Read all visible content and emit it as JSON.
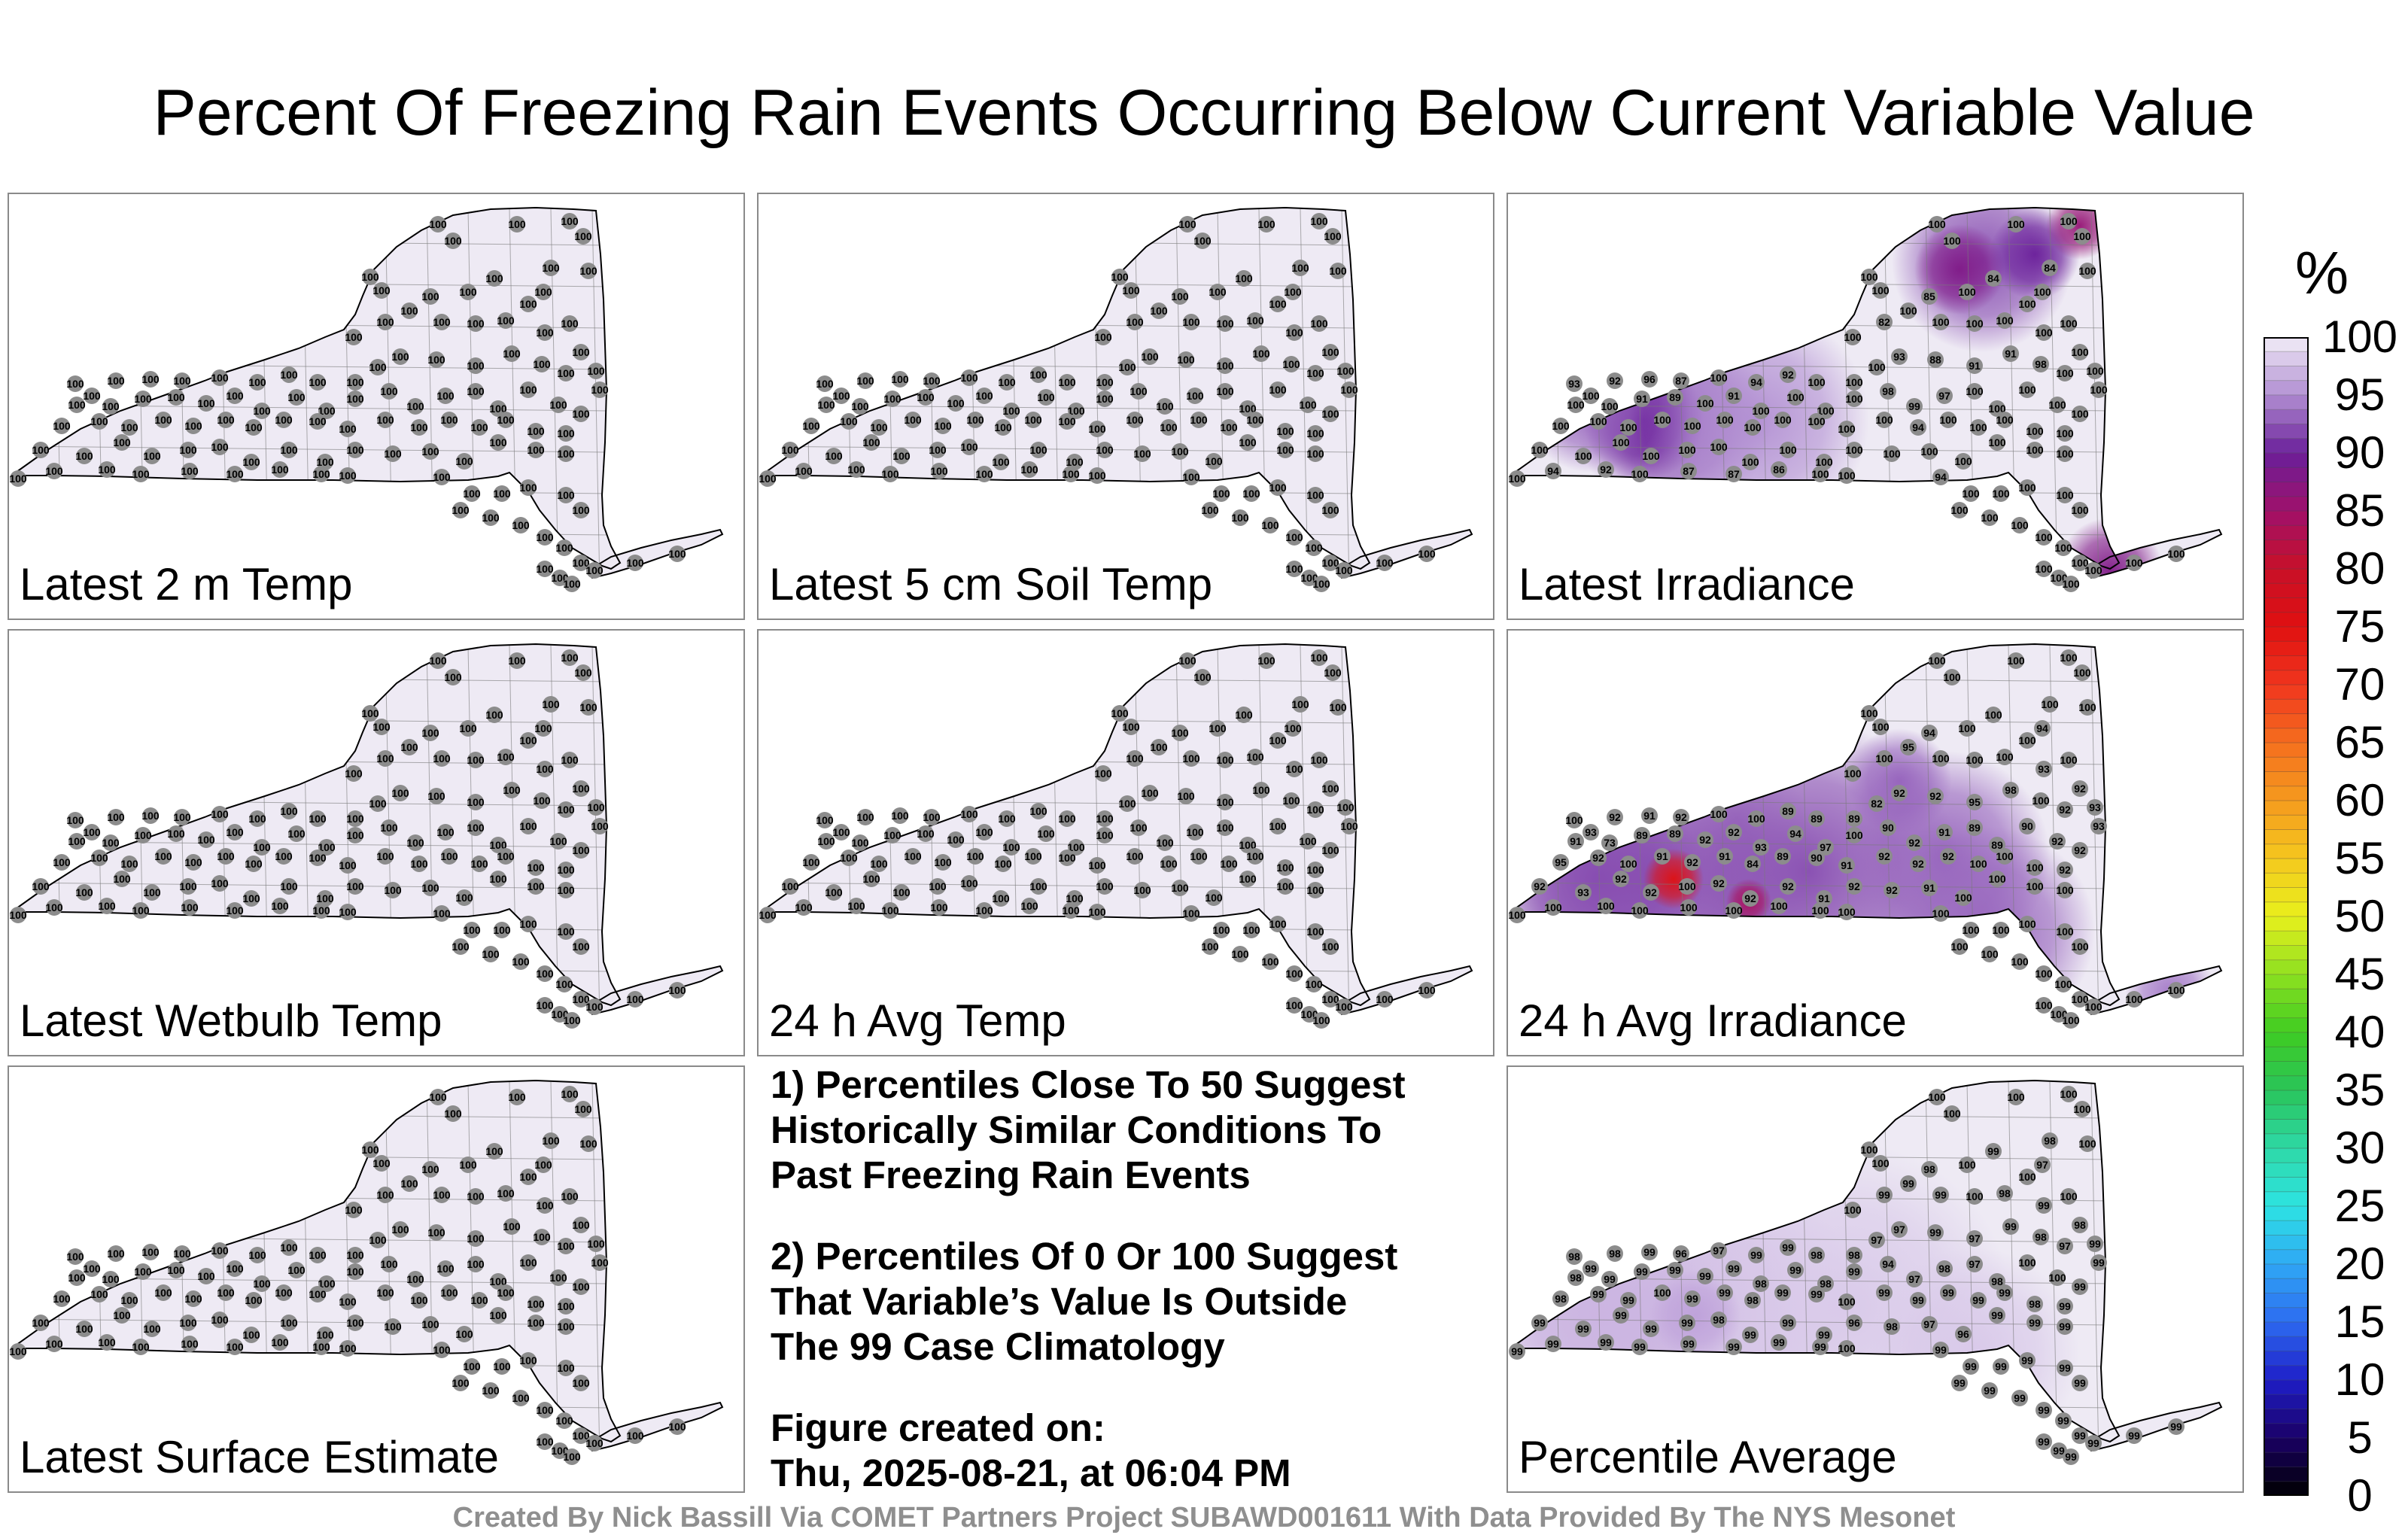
{
  "title": "Percent Of Freezing Rain Events Occurring Below Current Variable Value",
  "colors": {
    "low_value_lavender": "#eeeaf4",
    "mid_purple": "#c2aad8",
    "deep_purple": "#6a1f9a",
    "hotspot_red": "#d52020",
    "station_marker": "#8c8c8c",
    "state_outline": "#000000",
    "county_lines": "#7a7a7a"
  },
  "panels": [
    {
      "label": "Latest 2 m Temp",
      "fill": "uniform",
      "station_values": [
        "100",
        "100",
        "100",
        "100",
        "100",
        "100",
        "100",
        "100",
        "100",
        "100",
        "100",
        "100",
        "100",
        "100",
        "100",
        "100",
        "100",
        "100",
        "100",
        "100",
        "100",
        "100",
        "100",
        "100",
        "100",
        "100",
        "100",
        "100",
        "100",
        "100",
        "100",
        "100",
        "100",
        "100",
        "100",
        "100",
        "100",
        "100",
        "100",
        "100",
        "100",
        "100",
        "100",
        "100",
        "100",
        "100",
        "100",
        "100",
        "100",
        "100",
        "100",
        "100",
        "100",
        "100",
        "100",
        "100",
        "100",
        "100",
        "100",
        "100",
        "100",
        "100",
        "100",
        "100",
        "100",
        "100",
        "100",
        "100",
        "100",
        "100",
        "100",
        "100",
        "100",
        "100",
        "100",
        "100",
        "100",
        "100",
        "100",
        "100",
        "100",
        "100",
        "100",
        "100",
        "100",
        "100",
        "100",
        "100",
        "100",
        "100",
        "100",
        "100",
        "100",
        "100",
        "100",
        "100",
        "100",
        "100",
        "100",
        "100",
        "100",
        "100",
        "100",
        "100",
        "100",
        "100",
        "100",
        "100",
        "100",
        "100",
        "100",
        "100",
        "100",
        "100",
        "100",
        "100",
        "100",
        "100",
        "100",
        "100"
      ]
    },
    {
      "label": "Latest 5 cm Soil Temp",
      "fill": "uniform",
      "station_values": [
        "100",
        "100",
        "100",
        "100",
        "100",
        "100",
        "100",
        "100",
        "100",
        "100",
        "100",
        "100",
        "100",
        "100",
        "100",
        "100",
        "100",
        "100",
        "100",
        "100",
        "100",
        "100",
        "100",
        "100",
        "100",
        "100",
        "100",
        "100",
        "100",
        "100",
        "100",
        "100",
        "100",
        "100",
        "100",
        "100",
        "100",
        "100",
        "100",
        "100",
        "100",
        "100",
        "100",
        "100",
        "100",
        "100",
        "100",
        "100",
        "100",
        "100",
        "100",
        "100",
        "100",
        "100",
        "100",
        "100",
        "100",
        "100",
        "100",
        "100",
        "100",
        "100",
        "100",
        "100",
        "100",
        "100",
        "100",
        "100",
        "100",
        "100",
        "100",
        "100",
        "100",
        "100",
        "100",
        "100",
        "100",
        "100",
        "100",
        "100",
        "100",
        "100",
        "100",
        "100",
        "100",
        "100",
        "100",
        "100",
        "100",
        "100",
        "100",
        "100",
        "100",
        "100",
        "100",
        "100",
        "100",
        "100",
        "100",
        "100",
        "100",
        "100",
        "100",
        "100",
        "100",
        "100",
        "100",
        "100",
        "100",
        "100",
        "100",
        "100",
        "100",
        "100",
        "100",
        "100",
        "100",
        "100",
        "100",
        "100"
      ]
    },
    {
      "label": "Latest Irradiance",
      "fill": "irradiance",
      "station_values": [
        "100",
        "100",
        "100",
        "100",
        "84",
        "100",
        "100",
        "100",
        "85",
        "100",
        "84",
        "100",
        "100",
        "100",
        "100",
        "100",
        "82",
        "100",
        "100",
        "100",
        "100",
        "100",
        "100",
        "100",
        "100",
        "93",
        "100",
        "92",
        "96",
        "87",
        "100",
        "94",
        "92",
        "100",
        "100",
        "100",
        "93",
        "88",
        "91",
        "91",
        "98",
        "100",
        "100",
        "100",
        "91",
        "89",
        "100",
        "91",
        "100",
        "100",
        "100",
        "100",
        "98",
        "99",
        "97",
        "100",
        "100",
        "100",
        "100",
        "100",
        "100",
        "100",
        "100",
        "100",
        "100",
        "100",
        "100",
        "100",
        "100",
        "100",
        "100",
        "94",
        "100",
        "100",
        "100",
        "100",
        "100",
        "100",
        "100",
        "100",
        "100",
        "100",
        "100",
        "100",
        "100",
        "100",
        "100",
        "100",
        "100",
        "100",
        "100",
        "100",
        "100",
        "100",
        "94",
        "92",
        "100",
        "87",
        "87",
        "86",
        "100",
        "100",
        "94",
        "100",
        "100",
        "100",
        "100",
        "100",
        "100",
        "100",
        "100",
        "100",
        "100",
        "100",
        "100",
        "100",
        "100",
        "100",
        "100",
        "100"
      ]
    },
    {
      "label": "Latest Wetbulb Temp",
      "fill": "uniform",
      "station_values": [
        "100",
        "100",
        "100",
        "100",
        "100",
        "100",
        "100",
        "100",
        "100",
        "100",
        "100",
        "100",
        "100",
        "100",
        "100",
        "100",
        "100",
        "100",
        "100",
        "100",
        "100",
        "100",
        "100",
        "100",
        "100",
        "100",
        "100",
        "100",
        "100",
        "100",
        "100",
        "100",
        "100",
        "100",
        "100",
        "100",
        "100",
        "100",
        "100",
        "100",
        "100",
        "100",
        "100",
        "100",
        "100",
        "100",
        "100",
        "100",
        "100",
        "100",
        "100",
        "100",
        "100",
        "100",
        "100",
        "100",
        "100",
        "100",
        "100",
        "100",
        "100",
        "100",
        "100",
        "100",
        "100",
        "100",
        "100",
        "100",
        "100",
        "100",
        "100",
        "100",
        "100",
        "100",
        "100",
        "100",
        "100",
        "100",
        "100",
        "100",
        "100",
        "100",
        "100",
        "100",
        "100",
        "100",
        "100",
        "100",
        "100",
        "100",
        "100",
        "100",
        "100",
        "100",
        "100",
        "100",
        "100",
        "100",
        "100",
        "100",
        "100",
        "100",
        "100",
        "100",
        "100",
        "100",
        "100",
        "100",
        "100",
        "100",
        "100",
        "100",
        "100",
        "100",
        "100",
        "100",
        "100",
        "100",
        "100",
        "100"
      ]
    },
    {
      "label": "24 h Avg Temp",
      "fill": "uniform",
      "station_values": [
        "100",
        "100",
        "100",
        "100",
        "100",
        "100",
        "100",
        "100",
        "100",
        "100",
        "100",
        "100",
        "100",
        "100",
        "100",
        "100",
        "100",
        "100",
        "100",
        "100",
        "100",
        "100",
        "100",
        "100",
        "100",
        "100",
        "100",
        "100",
        "100",
        "100",
        "100",
        "100",
        "100",
        "100",
        "100",
        "100",
        "100",
        "100",
        "100",
        "100",
        "100",
        "100",
        "100",
        "100",
        "100",
        "100",
        "100",
        "100",
        "100",
        "100",
        "100",
        "100",
        "100",
        "100",
        "100",
        "100",
        "100",
        "100",
        "100",
        "100",
        "100",
        "100",
        "100",
        "100",
        "100",
        "100",
        "100",
        "100",
        "100",
        "100",
        "100",
        "100",
        "100",
        "100",
        "100",
        "100",
        "100",
        "100",
        "100",
        "100",
        "100",
        "100",
        "100",
        "100",
        "100",
        "100",
        "100",
        "100",
        "100",
        "100",
        "100",
        "100",
        "100",
        "100",
        "100",
        "100",
        "100",
        "100",
        "100",
        "100",
        "100",
        "100",
        "100",
        "100",
        "100",
        "100",
        "100",
        "100",
        "100",
        "100",
        "100",
        "100",
        "100",
        "100",
        "100",
        "100",
        "100",
        "100",
        "100",
        "100"
      ]
    },
    {
      "label": "24 h Avg Irradiance",
      "fill": "avg_irradiance",
      "station_values": [
        "100",
        "100",
        "100",
        "100",
        "100",
        "100",
        "100",
        "100",
        "94",
        "100",
        "100",
        "100",
        "94",
        "100",
        "100",
        "100",
        "100",
        "95",
        "100",
        "100",
        "100",
        "93",
        "92",
        "93",
        "93",
        "100",
        "93",
        "92",
        "91",
        "92",
        "100",
        "100",
        "89",
        "89",
        "89",
        "82",
        "92",
        "92",
        "95",
        "98",
        "100",
        "92",
        "91",
        "73",
        "89",
        "89",
        "92",
        "92",
        "93",
        "94",
        "97",
        "100",
        "90",
        "92",
        "91",
        "89",
        "89",
        "90",
        "92",
        "92",
        "95",
        "92",
        "100",
        "91",
        "92",
        "91",
        "84",
        "89",
        "90",
        "91",
        "92",
        "92",
        "92",
        "100",
        "100",
        "100",
        "92",
        "92",
        "93",
        "92",
        "92",
        "100",
        "92",
        "92",
        "92",
        "91",
        "92",
        "92",
        "91",
        "100",
        "100",
        "100",
        "100",
        "100",
        "100",
        "100",
        "100",
        "100",
        "100",
        "100",
        "100",
        "100",
        "100",
        "100",
        "100",
        "100",
        "100",
        "100",
        "100",
        "100",
        "100",
        "100",
        "100",
        "100",
        "100",
        "100",
        "100",
        "100",
        "100",
        "100"
      ]
    },
    {
      "label": "Latest Surface Estimate",
      "fill": "uniform",
      "station_values": [
        "100",
        "100",
        "100",
        "100",
        "100",
        "100",
        "100",
        "100",
        "100",
        "100",
        "100",
        "100",
        "100",
        "100",
        "100",
        "100",
        "100",
        "100",
        "100",
        "100",
        "100",
        "100",
        "100",
        "100",
        "100",
        "100",
        "100",
        "100",
        "100",
        "100",
        "100",
        "100",
        "100",
        "100",
        "100",
        "100",
        "100",
        "100",
        "100",
        "100",
        "100",
        "100",
        "100",
        "100",
        "100",
        "100",
        "100",
        "100",
        "100",
        "100",
        "100",
        "100",
        "100",
        "100",
        "100",
        "100",
        "100",
        "100",
        "100",
        "100",
        "100",
        "100",
        "100",
        "100",
        "100",
        "100",
        "100",
        "100",
        "100",
        "100",
        "100",
        "100",
        "100",
        "100",
        "100",
        "100",
        "100",
        "100",
        "100",
        "100",
        "100",
        "100",
        "100",
        "100",
        "100",
        "100",
        "100",
        "100",
        "100",
        "100",
        "100",
        "100",
        "100",
        "100",
        "100",
        "100",
        "100",
        "100",
        "100",
        "100",
        "100",
        "100",
        "100",
        "100",
        "100",
        "100",
        "100",
        "100",
        "100",
        "100",
        "100",
        "100",
        "100",
        "100",
        "100",
        "100",
        "100",
        "100",
        "100",
        "100"
      ]
    },
    {
      "label": "Percentile Average",
      "fill": "average",
      "station_values": [
        "100",
        "100",
        "100",
        "100",
        "98",
        "100",
        "100",
        "100",
        "98",
        "100",
        "99",
        "100",
        "97",
        "100",
        "100",
        "100",
        "99",
        "99",
        "99",
        "100",
        "98",
        "99",
        "98",
        "99",
        "99",
        "98",
        "99",
        "98",
        "99",
        "96",
        "97",
        "99",
        "99",
        "98",
        "98",
        "97",
        "97",
        "99",
        "97",
        "99",
        "98",
        "97",
        "98",
        "99",
        "99",
        "99",
        "99",
        "99",
        "98",
        "99",
        "98",
        "99",
        "94",
        "97",
        "98",
        "97",
        "98",
        "100",
        "100",
        "99",
        "98",
        "99",
        "99",
        "100",
        "99",
        "99",
        "98",
        "99",
        "99",
        "100",
        "99",
        "99",
        "99",
        "99",
        "99",
        "98",
        "99",
        "99",
        "99",
        "99",
        "99",
        "99",
        "98",
        "99",
        "99",
        "99",
        "96",
        "98",
        "97",
        "96",
        "99",
        "99",
        "99",
        "99",
        "99",
        "99",
        "99",
        "99",
        "99",
        "99",
        "99",
        "100",
        "99",
        "99",
        "99",
        "99",
        "99",
        "99",
        "99",
        "99",
        "99",
        "99",
        "99",
        "99",
        "99",
        "99",
        "99",
        "99",
        "99",
        "99"
      ]
    }
  ],
  "notes": [
    "1) Percentiles Close To 50 Suggest\nHistorically Similar Conditions To\nPast Freezing Rain Events",
    "2) Percentiles Of 0 Or 100 Suggest\nThat Variable’s Value Is Outside\nThe 99 Case Climatology",
    "Figure created on:\nThu, 2025-08-21, at 06:04 PM"
  ],
  "colorbar": {
    "unit": "%",
    "min": 0,
    "max": 100,
    "step": 5,
    "tick_labels": [
      "100",
      "95",
      "90",
      "85",
      "80",
      "75",
      "70",
      "65",
      "60",
      "55",
      "50",
      "45",
      "40",
      "35",
      "30",
      "25",
      "20",
      "15",
      "10",
      "5",
      "0"
    ],
    "colormap": [
      [
        0,
        "#000000"
      ],
      [
        5,
        "#1a0066"
      ],
      [
        10,
        "#1e1ec8"
      ],
      [
        15,
        "#2d6bf0"
      ],
      [
        20,
        "#2fa8f5"
      ],
      [
        25,
        "#2de3e3"
      ],
      [
        30,
        "#2ed9a6"
      ],
      [
        35,
        "#29c45a"
      ],
      [
        40,
        "#3fcc22"
      ],
      [
        45,
        "#8ee020"
      ],
      [
        50,
        "#e8f01c"
      ],
      [
        55,
        "#f5c81e"
      ],
      [
        60,
        "#f59a1e"
      ],
      [
        65,
        "#f56e1e"
      ],
      [
        70,
        "#f0361e"
      ],
      [
        75,
        "#e01010"
      ],
      [
        80,
        "#c81028"
      ],
      [
        85,
        "#a0106a"
      ],
      [
        90,
        "#6a1f9a"
      ],
      [
        95,
        "#b18ed2"
      ],
      [
        100,
        "#f2eef8"
      ]
    ]
  },
  "footer": "Created By Nick Bassill Via COMET Partners Project SUBAWD001611 With Data Provided By The NYS Mesonet"
}
